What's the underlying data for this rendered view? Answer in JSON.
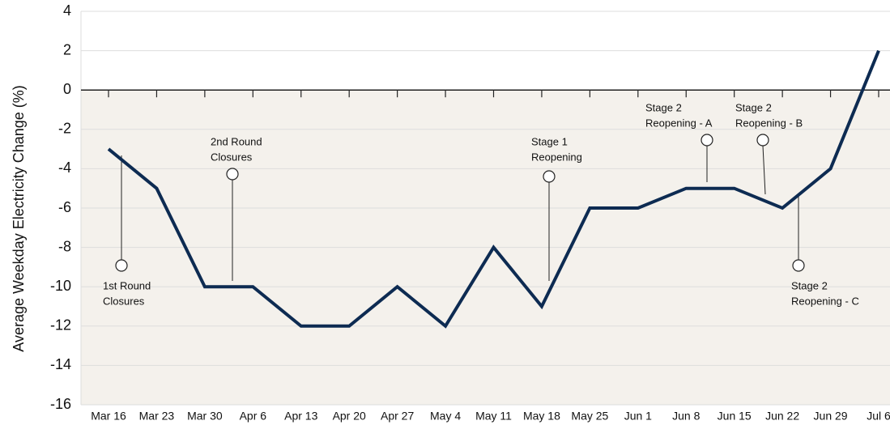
{
  "chart_data": {
    "type": "line",
    "y_label": "Average Weekday Electricity Change (%)",
    "categories": [
      "Mar 16",
      "Mar 23",
      "Mar 30",
      "Apr 6",
      "Apr 13",
      "Apr 20",
      "Apr 27",
      "May 4",
      "May 11",
      "May 18",
      "May 25",
      "Jun 1",
      "Jun 8",
      "Jun 15",
      "Jun 22",
      "Jun 29",
      "Jul 6"
    ],
    "series": [
      {
        "color": "#0d2b52",
        "values": [
          -3,
          -5,
          -10,
          -10,
          -12,
          -12,
          -10,
          -12,
          -8,
          -11,
          -6,
          -6,
          -5,
          -5,
          -6,
          -4,
          2
        ]
      }
    ],
    "ylim": [
      -16,
      4
    ],
    "yticks": [
      -16,
      -14,
      -12,
      -10,
      -8,
      -6,
      -4,
      -2,
      0,
      2,
      4
    ],
    "grid": true,
    "negative_fill": "#f4f1ec",
    "annotations": [
      {
        "lines": [
          "1st Round",
          "Closures"
        ]
      },
      {
        "lines": [
          "2nd Round",
          "Closures"
        ]
      },
      {
        "lines": [
          "Stage 1",
          "Reopening"
        ]
      },
      {
        "lines": [
          "Stage 2",
          "Reopening - A"
        ]
      },
      {
        "lines": [
          "Stage 2",
          "Reopening - B"
        ]
      },
      {
        "lines": [
          "Stage 2",
          "Reopening - C"
        ]
      }
    ]
  }
}
